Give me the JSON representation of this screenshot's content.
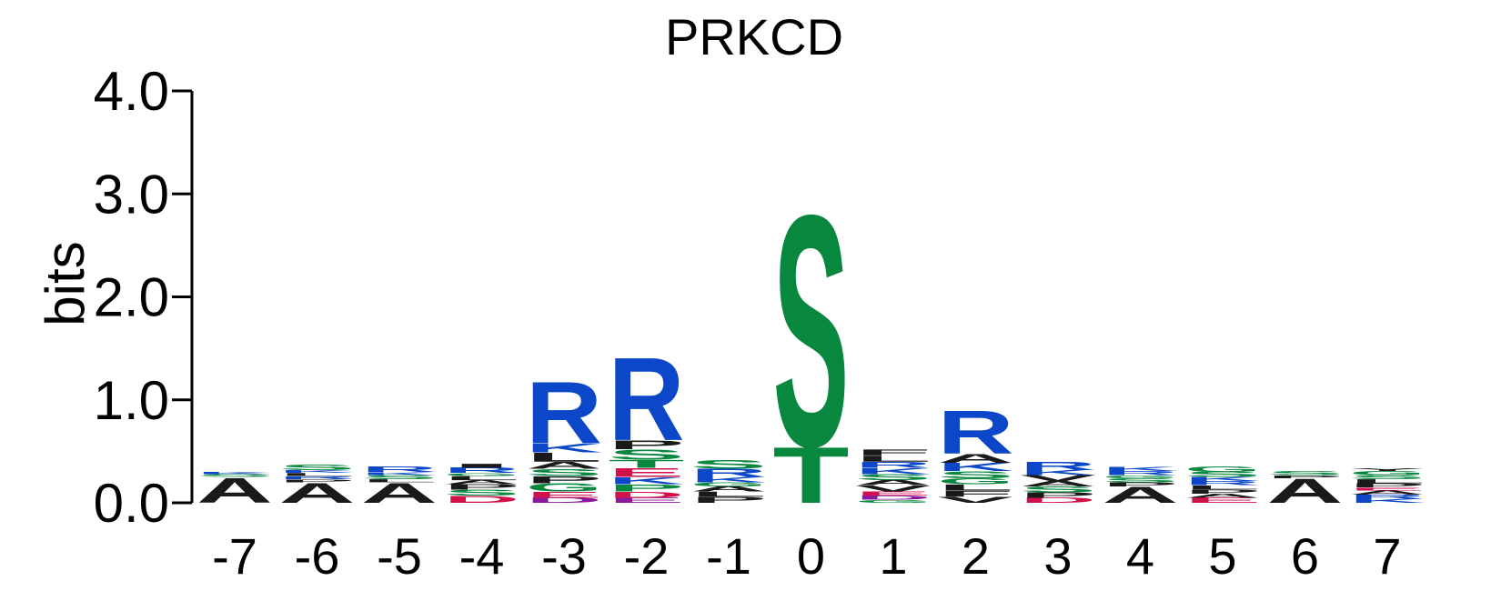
{
  "chart_data": {
    "type": "sequence-logo",
    "title": "PRKCD",
    "ylabel": "bits",
    "xlabel": "",
    "ylim": [
      0,
      4
    ],
    "y_ticks": [
      "0.0",
      "1.0",
      "2.0",
      "3.0",
      "4.0"
    ],
    "y_tick_values": [
      0,
      1,
      2,
      3,
      4
    ],
    "positions": [
      "-7",
      "-6",
      "-5",
      "-4",
      "-3",
      "-2",
      "-1",
      "0",
      "1",
      "2",
      "3",
      "4",
      "5",
      "6",
      "7"
    ],
    "colors": {
      "basic": "#0b47c8",
      "polar": "#07883e",
      "hydrophobic": "#1a1a1a",
      "acidic": "#d11149",
      "amide": "#8a1a9b"
    },
    "columns": [
      {
        "position": "-7",
        "stack": [
          {
            "letter": "A",
            "height": 0.25
          },
          {
            "letter": "S",
            "height": 0.03,
            "color": "polar"
          },
          {
            "letter": "K",
            "height": 0.02,
            "color": "basic"
          }
        ]
      },
      {
        "position": "-6",
        "stack": [
          {
            "letter": "A",
            "height": 0.2
          },
          {
            "letter": "P",
            "height": 0.03
          },
          {
            "letter": "R",
            "height": 0.03,
            "color": "basic"
          },
          {
            "letter": "L",
            "height": 0.03
          },
          {
            "letter": "K",
            "height": 0.03,
            "color": "basic"
          },
          {
            "letter": "S",
            "height": 0.05,
            "color": "polar"
          }
        ]
      },
      {
        "position": "-5",
        "stack": [
          {
            "letter": "A",
            "height": 0.2
          },
          {
            "letter": "L",
            "height": 0.03
          },
          {
            "letter": "S",
            "height": 0.04,
            "color": "polar"
          },
          {
            "letter": "K",
            "height": 0.03,
            "color": "basic"
          },
          {
            "letter": "R",
            "height": 0.05,
            "color": "basic"
          }
        ]
      },
      {
        "position": "-4",
        "stack": [
          {
            "letter": "D",
            "height": 0.07,
            "color": "acidic"
          },
          {
            "letter": "S",
            "height": 0.06,
            "color": "polar"
          },
          {
            "letter": "P",
            "height": 0.05
          },
          {
            "letter": "A",
            "height": 0.04
          },
          {
            "letter": "L",
            "height": 0.04
          },
          {
            "letter": "G",
            "height": 0.03,
            "color": "polar"
          },
          {
            "letter": "R",
            "height": 0.05,
            "color": "basic"
          },
          {
            "letter": "I",
            "height": 0.04
          }
        ]
      },
      {
        "position": "-3",
        "stack": [
          {
            "letter": "D",
            "height": 0.05,
            "color": "amide"
          },
          {
            "letter": "E",
            "height": 0.06,
            "color": "acidic"
          },
          {
            "letter": "G",
            "height": 0.08,
            "color": "polar"
          },
          {
            "letter": "P",
            "height": 0.07
          },
          {
            "letter": "S",
            "height": 0.07,
            "color": "polar"
          },
          {
            "letter": "A",
            "height": 0.07
          },
          {
            "letter": "L",
            "height": 0.09
          },
          {
            "letter": "K",
            "height": 0.09,
            "color": "basic"
          },
          {
            "letter": "R",
            "height": 0.62,
            "color": "basic"
          }
        ]
      },
      {
        "position": "-2",
        "stack": [
          {
            "letter": "E",
            "height": 0.05,
            "color": "amide"
          },
          {
            "letter": "D",
            "height": 0.06,
            "color": "acidic"
          },
          {
            "letter": "P",
            "height": 0.07,
            "color": "polar"
          },
          {
            "letter": "K",
            "height": 0.07,
            "color": "basic"
          },
          {
            "letter": "E",
            "height": 0.09,
            "color": "acidic"
          },
          {
            "letter": "T",
            "height": 0.08,
            "color": "polar"
          },
          {
            "letter": "S",
            "height": 0.1,
            "color": "polar"
          },
          {
            "letter": "P",
            "height": 0.09
          },
          {
            "letter": "R",
            "height": 0.83,
            "color": "basic"
          }
        ]
      },
      {
        "position": "-1",
        "stack": [
          {
            "letter": "P",
            "height": 0.06
          },
          {
            "letter": "L",
            "height": 0.05
          },
          {
            "letter": "A",
            "height": 0.05
          },
          {
            "letter": "G",
            "height": 0.04,
            "color": "polar"
          },
          {
            "letter": "K",
            "height": 0.05,
            "color": "basic"
          },
          {
            "letter": "R",
            "height": 0.08,
            "color": "basic"
          },
          {
            "letter": "S",
            "height": 0.09,
            "color": "polar"
          }
        ]
      },
      {
        "position": "0",
        "stack": [
          {
            "letter": "T",
            "height": 0.56,
            "color": "polar"
          },
          {
            "letter": "S",
            "height": 2.31,
            "color": "polar"
          }
        ]
      },
      {
        "position": "1",
        "stack": [
          {
            "letter": "G",
            "height": 0.03,
            "color": "polar"
          },
          {
            "letter": "D",
            "height": 0.04,
            "color": "amide"
          },
          {
            "letter": "E",
            "height": 0.04,
            "color": "acidic"
          },
          {
            "letter": "V",
            "height": 0.06
          },
          {
            "letter": "A",
            "height": 0.05
          },
          {
            "letter": "S",
            "height": 0.06,
            "color": "polar"
          },
          {
            "letter": "K",
            "height": 0.06,
            "color": "basic"
          },
          {
            "letter": "R",
            "height": 0.06,
            "color": "basic"
          },
          {
            "letter": "L",
            "height": 0.06
          },
          {
            "letter": "F",
            "height": 0.06
          }
        ]
      },
      {
        "position": "2",
        "stack": [
          {
            "letter": "V",
            "height": 0.06
          },
          {
            "letter": "F",
            "height": 0.06
          },
          {
            "letter": "L",
            "height": 0.06
          },
          {
            "letter": "G",
            "height": 0.06,
            "color": "polar"
          },
          {
            "letter": "S",
            "height": 0.07,
            "color": "polar"
          },
          {
            "letter": "K",
            "height": 0.08,
            "color": "basic"
          },
          {
            "letter": "A",
            "height": 0.09
          },
          {
            "letter": "R",
            "height": 0.43,
            "color": "basic"
          }
        ]
      },
      {
        "position": "3",
        "stack": [
          {
            "letter": "D",
            "height": 0.05,
            "color": "acidic"
          },
          {
            "letter": "P",
            "height": 0.05
          },
          {
            "letter": "S",
            "height": 0.06,
            "color": "polar"
          },
          {
            "letter": "A",
            "height": 0.05
          },
          {
            "letter": "V",
            "height": 0.06
          },
          {
            "letter": "K",
            "height": 0.05,
            "color": "basic"
          },
          {
            "letter": "R",
            "height": 0.08,
            "color": "basic"
          }
        ]
      },
      {
        "position": "4",
        "stack": [
          {
            "letter": "A",
            "height": 0.16
          },
          {
            "letter": "P",
            "height": 0.04
          },
          {
            "letter": "S",
            "height": 0.04,
            "color": "polar"
          },
          {
            "letter": "G",
            "height": 0.03,
            "color": "polar"
          },
          {
            "letter": "R",
            "height": 0.04,
            "color": "basic"
          },
          {
            "letter": "K",
            "height": 0.04,
            "color": "basic"
          }
        ]
      },
      {
        "position": "5",
        "stack": [
          {
            "letter": "E",
            "height": 0.05,
            "color": "acidic"
          },
          {
            "letter": "A",
            "height": 0.04
          },
          {
            "letter": "P",
            "height": 0.04
          },
          {
            "letter": "L",
            "height": 0.04
          },
          {
            "letter": "R",
            "height": 0.04,
            "color": "basic"
          },
          {
            "letter": "K",
            "height": 0.04,
            "color": "basic"
          },
          {
            "letter": "S",
            "height": 0.05,
            "color": "polar"
          },
          {
            "letter": "G",
            "height": 0.05,
            "color": "polar"
          }
        ]
      },
      {
        "position": "6",
        "stack": [
          {
            "letter": "A",
            "height": 0.24
          },
          {
            "letter": "P",
            "height": 0.03
          },
          {
            "letter": "S",
            "height": 0.04,
            "color": "polar"
          }
        ]
      },
      {
        "position": "7",
        "stack": [
          {
            "letter": "K",
            "height": 0.04,
            "color": "basic"
          },
          {
            "letter": "R",
            "height": 0.04,
            "color": "basic"
          },
          {
            "letter": "A",
            "height": 0.04
          },
          {
            "letter": "E",
            "height": 0.03,
            "color": "acidic"
          },
          {
            "letter": "P",
            "height": 0.04
          },
          {
            "letter": "L",
            "height": 0.04
          },
          {
            "letter": "S",
            "height": 0.04,
            "color": "polar"
          },
          {
            "letter": "G",
            "height": 0.04,
            "color": "polar"
          },
          {
            "letter": "Y",
            "height": 0.03
          }
        ]
      }
    ]
  }
}
